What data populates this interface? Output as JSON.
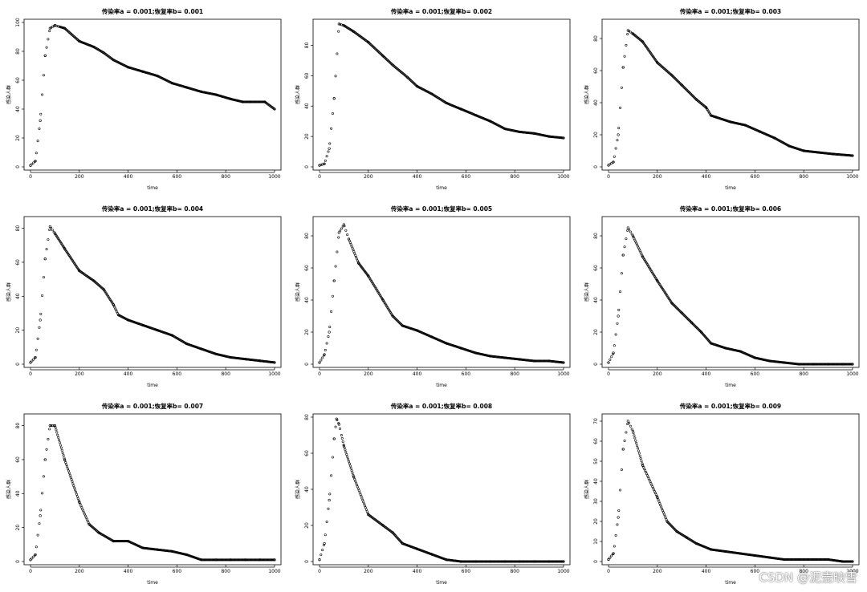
{
  "watermark": "CSDN @泥壶映雪",
  "chart_data": [
    {
      "type": "scatter",
      "title": "传染率a = 0.001;恢复率b= 0.001",
      "xlabel": "time",
      "ylabel": "感染人群",
      "xlim": [
        0,
        1000
      ],
      "ylim": [
        0,
        100
      ],
      "xticks": [
        0,
        200,
        400,
        600,
        800,
        1000
      ],
      "yticks": [
        0,
        20,
        40,
        60,
        80,
        100
      ],
      "x": [
        0,
        20,
        40,
        60,
        80,
        100,
        140,
        200,
        260,
        300,
        340,
        400,
        460,
        520,
        580,
        640,
        700,
        760,
        820,
        870,
        900,
        960,
        1000
      ],
      "y": [
        1,
        4,
        32,
        77,
        96,
        98,
        96,
        87,
        83,
        79,
        74,
        69,
        66,
        63,
        58,
        55,
        52,
        50,
        47,
        45,
        45,
        45,
        40
      ]
    },
    {
      "type": "scatter",
      "title": "传染率a = 0.001;恢复率b= 0.002",
      "xlabel": "time",
      "ylabel": "感染人群",
      "xlim": [
        0,
        1000
      ],
      "ylim": [
        0,
        95
      ],
      "xticks": [
        0,
        200,
        400,
        600,
        800,
        1000
      ],
      "yticks": [
        0,
        20,
        40,
        60,
        80
      ],
      "x": [
        0,
        20,
        40,
        60,
        80,
        100,
        140,
        200,
        260,
        300,
        360,
        400,
        460,
        520,
        580,
        640,
        700,
        760,
        820,
        880,
        940,
        1000
      ],
      "y": [
        1,
        2,
        12,
        45,
        94,
        93,
        89,
        82,
        73,
        67,
        59,
        53,
        48,
        42,
        38,
        34,
        30,
        25,
        23,
        22,
        20,
        19
      ]
    },
    {
      "type": "scatter",
      "title": "传染率a = 0.001;恢复率b= 0.003",
      "xlabel": "time",
      "ylabel": "感染人群",
      "xlim": [
        0,
        1000
      ],
      "ylim": [
        0,
        90
      ],
      "xticks": [
        0,
        200,
        400,
        600,
        800,
        1000
      ],
      "yticks": [
        0,
        20,
        40,
        60,
        80
      ],
      "x": [
        0,
        20,
        40,
        60,
        80,
        100,
        140,
        200,
        260,
        300,
        360,
        400,
        420,
        440,
        500,
        560,
        620,
        680,
        740,
        800,
        860,
        920,
        1000
      ],
      "y": [
        1,
        3,
        20,
        62,
        85,
        83,
        78,
        65,
        57,
        51,
        42,
        37,
        32,
        31,
        28,
        26,
        22,
        18,
        13,
        10,
        9,
        8,
        7
      ]
    },
    {
      "type": "scatter",
      "title": "传染率a = 0.001;恢复率b= 0.004",
      "xlabel": "time",
      "ylabel": "感染人群",
      "xlim": [
        0,
        1000
      ],
      "ylim": [
        0,
        85
      ],
      "xticks": [
        0,
        200,
        400,
        600,
        800,
        1000
      ],
      "yticks": [
        0,
        20,
        40,
        60,
        80
      ],
      "x": [
        0,
        20,
        40,
        60,
        80,
        100,
        140,
        200,
        260,
        300,
        340,
        360,
        400,
        460,
        520,
        580,
        640,
        700,
        760,
        820,
        880,
        940,
        1000
      ],
      "y": [
        1,
        4,
        26,
        62,
        81,
        77,
        68,
        55,
        49,
        44,
        35,
        29,
        26,
        23,
        20,
        17,
        12,
        9,
        6,
        4,
        3,
        2,
        1
      ]
    },
    {
      "type": "scatter",
      "title": "传染率a = 0.001;恢复率b= 0.005",
      "xlabel": "time",
      "ylabel": "感染人群",
      "xlim": [
        0,
        1000
      ],
      "ylim": [
        0,
        90
      ],
      "xticks": [
        0,
        200,
        400,
        600,
        800,
        1000
      ],
      "yticks": [
        0,
        20,
        40,
        60,
        80
      ],
      "x": [
        0,
        20,
        40,
        60,
        80,
        100,
        120,
        160,
        200,
        260,
        300,
        340,
        400,
        460,
        520,
        580,
        640,
        700,
        760,
        820,
        880,
        940,
        1000
      ],
      "y": [
        1,
        6,
        20,
        52,
        82,
        87,
        78,
        63,
        55,
        40,
        30,
        24,
        21,
        17,
        13,
        10,
        7,
        5,
        4,
        3,
        2,
        2,
        1
      ]
    },
    {
      "type": "scatter",
      "title": "传染率a = 0.001;恢复率b= 0.006",
      "xlabel": "time",
      "ylabel": "感染人群",
      "xlim": [
        0,
        1000
      ],
      "ylim": [
        0,
        90
      ],
      "xticks": [
        0,
        200,
        400,
        600,
        800,
        1000
      ],
      "yticks": [
        0,
        20,
        40,
        60,
        80
      ],
      "x": [
        0,
        20,
        40,
        60,
        80,
        100,
        140,
        200,
        260,
        300,
        340,
        380,
        420,
        480,
        540,
        600,
        660,
        720,
        780,
        840,
        900,
        960,
        1000
      ],
      "y": [
        1,
        7,
        30,
        68,
        85,
        80,
        67,
        52,
        38,
        32,
        26,
        20,
        13,
        10,
        8,
        4,
        2,
        1,
        0,
        0,
        0,
        0,
        0
      ]
    },
    {
      "type": "scatter",
      "title": "传染率a = 0.001;恢复率b= 0.007",
      "xlabel": "time",
      "ylabel": "感染人群",
      "xlim": [
        0,
        1000
      ],
      "ylim": [
        0,
        85
      ],
      "xticks": [
        0,
        200,
        400,
        600,
        800,
        1000
      ],
      "yticks": [
        0,
        20,
        40,
        60,
        80
      ],
      "x": [
        0,
        20,
        40,
        60,
        80,
        100,
        140,
        200,
        240,
        280,
        340,
        400,
        460,
        520,
        580,
        640,
        700,
        760,
        820,
        880,
        940,
        1000
      ],
      "y": [
        1,
        4,
        27,
        60,
        80,
        80,
        60,
        35,
        22,
        17,
        12,
        12,
        8,
        7,
        6,
        4,
        1,
        1,
        1,
        1,
        1,
        1
      ]
    },
    {
      "type": "scatter",
      "title": "传染率a = 0.001;恢复率b= 0.008",
      "xlabel": "time",
      "ylabel": "感染人群",
      "xlim": [
        0,
        1000
      ],
      "ylim": [
        0,
        80
      ],
      "xticks": [
        0,
        200,
        400,
        600,
        800,
        1000
      ],
      "yticks": [
        0,
        20,
        40,
        60,
        80
      ],
      "x": [
        0,
        20,
        40,
        60,
        70,
        80,
        100,
        140,
        200,
        260,
        300,
        340,
        400,
        460,
        520,
        580,
        640,
        700,
        760,
        820,
        880,
        940,
        1000
      ],
      "y": [
        1,
        10,
        34,
        68,
        79,
        76,
        64,
        47,
        26,
        20,
        16,
        10,
        7,
        4,
        1,
        0,
        0,
        0,
        0,
        0,
        0,
        0,
        0
      ]
    },
    {
      "type": "scatter",
      "title": "传染率a = 0.001;恢复率b= 0.009",
      "xlabel": "time",
      "ylabel": "感染人群",
      "xlim": [
        0,
        1000
      ],
      "ylim": [
        0,
        72
      ],
      "xticks": [
        0,
        200,
        400,
        600,
        800,
        1000
      ],
      "yticks": [
        0,
        10,
        20,
        30,
        40,
        50,
        60,
        70
      ],
      "x": [
        0,
        20,
        40,
        60,
        80,
        100,
        140,
        200,
        240,
        280,
        320,
        360,
        420,
        480,
        540,
        600,
        660,
        720,
        780,
        840,
        900,
        960,
        1000
      ],
      "y": [
        1,
        4,
        22,
        56,
        70,
        65,
        48,
        32,
        20,
        15,
        12,
        9,
        6,
        5,
        4,
        3,
        2,
        1,
        1,
        1,
        1,
        0,
        0
      ]
    }
  ]
}
